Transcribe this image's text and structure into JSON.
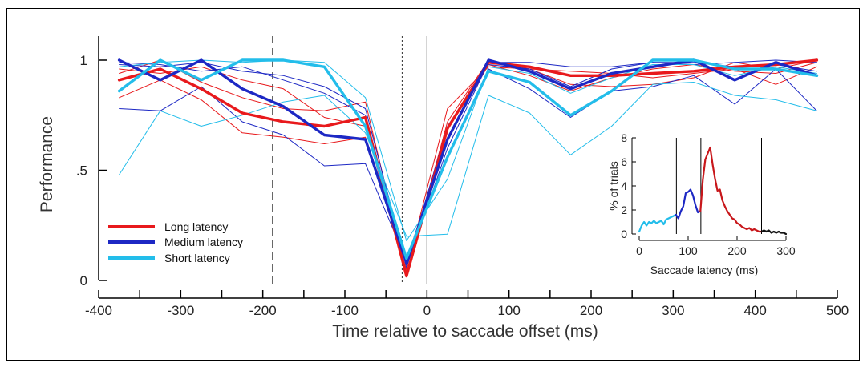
{
  "chart_data": [
    {
      "type": "line",
      "xlabel": "Time relative to saccade offset (ms)",
      "ylabel": "Performance",
      "xlim": [
        -400,
        500
      ],
      "ylim": [
        0,
        1.1
      ],
      "x_ticks": [
        -400,
        -300,
        -200,
        -100,
        0,
        100,
        200,
        300,
        400,
        500
      ],
      "x_tick_labels": [
        "-400",
        "-300",
        "-200",
        "-100",
        "0",
        "100",
        "200",
        "300",
        "400",
        "500"
      ],
      "y_ticks": [
        0,
        0.5,
        1
      ],
      "y_tick_labels": [
        "0",
        ".5",
        "1"
      ],
      "x": [
        -375,
        -325,
        -275,
        -225,
        -175,
        -125,
        -75,
        -25,
        25,
        75,
        125,
        175,
        225,
        275,
        325,
        375,
        425,
        475
      ],
      "vertical_lines": [
        {
          "x": -188,
          "style": "dashed"
        },
        {
          "x": -30,
          "style": "dotted"
        },
        {
          "x": 0,
          "style": "solid"
        }
      ],
      "legend": {
        "position": "bottom-left",
        "entries": [
          {
            "label": "Long latency",
            "color": "#e8191c"
          },
          {
            "label": "Medium latency",
            "color": "#1d28c4"
          },
          {
            "label": "Short latency",
            "color": "#23bdea"
          }
        ]
      },
      "series": [
        {
          "name": "Long latency",
          "color": "#e8191c",
          "width": "thick",
          "values": [
            0.91,
            0.96,
            0.87,
            0.76,
            0.72,
            0.7,
            0.74,
            0.02,
            0.69,
            0.99,
            0.97,
            0.93,
            0.93,
            0.94,
            0.95,
            0.97,
            0.98,
            1.0
          ]
        },
        {
          "color": "#e8191c",
          "width": "thin",
          "values": [
            0.83,
            0.91,
            0.82,
            0.67,
            0.65,
            0.62,
            0.65,
            0.05,
            0.78,
            0.97,
            0.96,
            0.95,
            0.94,
            0.92,
            0.94,
            0.96,
            0.89,
            0.97
          ]
        },
        {
          "color": "#e8191c",
          "width": "thin",
          "values": [
            0.94,
            1.0,
            0.9,
            0.83,
            0.78,
            0.77,
            0.81,
            0.03,
            0.72,
            1.0,
            0.96,
            0.89,
            0.88,
            0.89,
            0.92,
            0.99,
            0.96,
            1.0
          ]
        },
        {
          "color": "#e8191c",
          "width": "thin",
          "values": [
            0.96,
            0.94,
            0.97,
            0.91,
            0.87,
            0.74,
            0.7,
            0.04,
            0.65,
            0.98,
            0.93,
            0.86,
            0.92,
            0.96,
            0.98,
            0.95,
            0.94,
            0.99
          ]
        },
        {
          "name": "Medium latency",
          "color": "#1d28c4",
          "width": "thick",
          "values": [
            1.0,
            0.91,
            1.0,
            0.87,
            0.79,
            0.66,
            0.64,
            0.08,
            0.64,
            1.0,
            0.95,
            0.87,
            0.94,
            0.97,
            1.0,
            0.91,
            0.99,
            0.93
          ]
        },
        {
          "color": "#1d28c4",
          "width": "thin",
          "values": [
            0.78,
            0.77,
            0.88,
            0.72,
            0.66,
            0.52,
            0.53,
            0.09,
            0.56,
            0.96,
            0.87,
            0.74,
            0.86,
            0.88,
            0.93,
            0.8,
            0.96,
            0.77
          ]
        },
        {
          "color": "#1d28c4",
          "width": "thin",
          "values": [
            0.99,
            0.98,
            0.95,
            0.97,
            0.91,
            0.85,
            0.75,
            0.06,
            0.6,
            0.99,
            0.99,
            0.97,
            0.97,
            0.99,
            0.98,
            0.99,
            1.0,
            0.99
          ]
        },
        {
          "color": "#1d28c4",
          "width": "thin",
          "values": [
            0.98,
            0.97,
            0.99,
            0.95,
            0.93,
            0.88,
            0.78,
            0.07,
            0.7,
            0.98,
            0.96,
            0.88,
            0.96,
            0.99,
            0.99,
            0.97,
            0.98,
            0.95
          ]
        },
        {
          "name": "Short latency",
          "color": "#23bdea",
          "width": "thick",
          "values": [
            0.86,
            1.0,
            0.91,
            1.0,
            1.0,
            0.97,
            0.7,
            0.1,
            0.56,
            0.95,
            0.9,
            0.75,
            0.86,
            1.0,
            1.0,
            0.96,
            0.96,
            0.93
          ]
        },
        {
          "color": "#23bdea",
          "width": "thin",
          "values": [
            0.48,
            0.77,
            0.7,
            0.75,
            0.81,
            0.84,
            0.67,
            0.2,
            0.21,
            0.84,
            0.76,
            0.57,
            0.7,
            0.89,
            0.9,
            0.84,
            0.82,
            0.77
          ]
        },
        {
          "color": "#23bdea",
          "width": "thin",
          "values": [
            0.97,
            0.99,
            1.0,
            0.99,
            1.0,
            0.99,
            0.83,
            0.18,
            0.46,
            0.97,
            0.94,
            0.85,
            0.92,
            0.98,
            0.98,
            0.93,
            0.97,
            0.94
          ]
        }
      ]
    },
    {
      "type": "line",
      "xlabel": "Saccade latency (ms)",
      "ylabel": "% of trials",
      "xlim": [
        0,
        300
      ],
      "ylim": [
        0,
        8
      ],
      "x_ticks": [
        0,
        100,
        200,
        300
      ],
      "x_tick_labels": [
        "0",
        "100",
        "200",
        "300"
      ],
      "y_ticks": [
        0,
        2,
        4,
        6,
        8
      ],
      "y_tick_labels": [
        "0",
        "2",
        "4",
        "6",
        "8"
      ],
      "vertical_lines": [
        {
          "x": 76
        },
        {
          "x": 126
        },
        {
          "x": 250
        }
      ],
      "series": [
        {
          "color": "#23bdea",
          "x": [
            0,
            5,
            10,
            15,
            20,
            25,
            30,
            35,
            40,
            45,
            50,
            55,
            60,
            65,
            70,
            75
          ],
          "values": [
            0.2,
            0.7,
            1.0,
            0.7,
            1.0,
            0.9,
            1.1,
            0.9,
            1.0,
            1.1,
            0.8,
            1.2,
            1.3,
            1.4,
            1.5,
            1.6
          ]
        },
        {
          "color": "#1d28c4",
          "x": [
            75,
            80,
            85,
            90,
            95,
            100,
            105,
            110,
            115,
            120,
            125
          ],
          "values": [
            1.6,
            1.3,
            1.9,
            2.3,
            3.4,
            3.5,
            3.7,
            3.2,
            2.4,
            1.8,
            1.9
          ]
        },
        {
          "color": "#c8171b",
          "x": [
            125,
            130,
            135,
            140,
            145,
            150,
            155,
            160,
            165,
            170,
            175,
            180,
            185,
            190,
            195,
            200,
            205,
            210,
            215,
            220,
            225,
            230,
            235,
            240,
            245,
            250
          ],
          "values": [
            1.9,
            4.5,
            6.2,
            6.7,
            7.2,
            5.8,
            4.6,
            3.6,
            3.7,
            2.8,
            2.3,
            1.9,
            1.6,
            1.3,
            1.2,
            0.9,
            0.8,
            0.6,
            0.5,
            0.4,
            0.5,
            0.3,
            0.4,
            0.3,
            0.2,
            0.2
          ]
        },
        {
          "color": "#111111",
          "x": [
            250,
            255,
            260,
            265,
            270,
            275,
            280,
            285,
            290,
            295,
            300
          ],
          "values": [
            0.2,
            0.3,
            0.2,
            0.3,
            0.1,
            0.2,
            0.1,
            0.2,
            0.1,
            0.1,
            0.0
          ]
        }
      ]
    }
  ]
}
